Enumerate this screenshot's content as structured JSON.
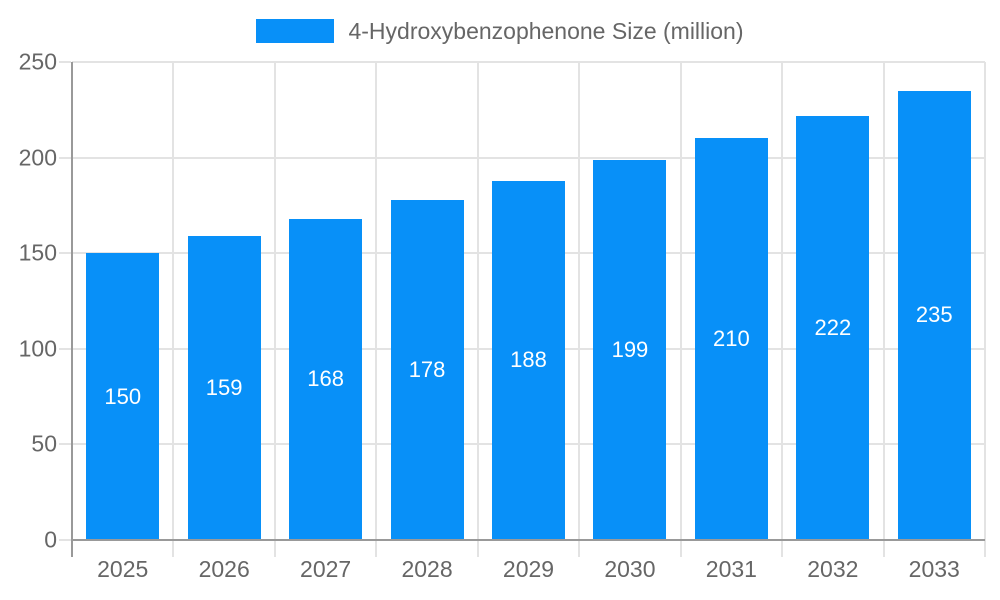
{
  "chart_data": {
    "type": "bar",
    "title": "",
    "legend": {
      "label": "4-Hydroxybenzophenone Size (million)",
      "position": "top"
    },
    "categories": [
      "2025",
      "2026",
      "2027",
      "2028",
      "2029",
      "2030",
      "2031",
      "2032",
      "2033"
    ],
    "values": [
      150,
      159,
      168,
      178,
      188,
      199,
      210,
      222,
      235
    ],
    "xlabel": "",
    "ylabel": "",
    "ylim": [
      0,
      250
    ],
    "yticks": [
      0,
      50,
      100,
      150,
      200,
      250
    ],
    "grid": true,
    "bar_labels_shown": true,
    "colors": {
      "bar": "#0890f8",
      "bar_label_text": "#ffffff",
      "axis_line": "#999999",
      "grid_line": "#e3e3e3",
      "tick_text": "#666666",
      "legend_text": "#666666"
    }
  }
}
